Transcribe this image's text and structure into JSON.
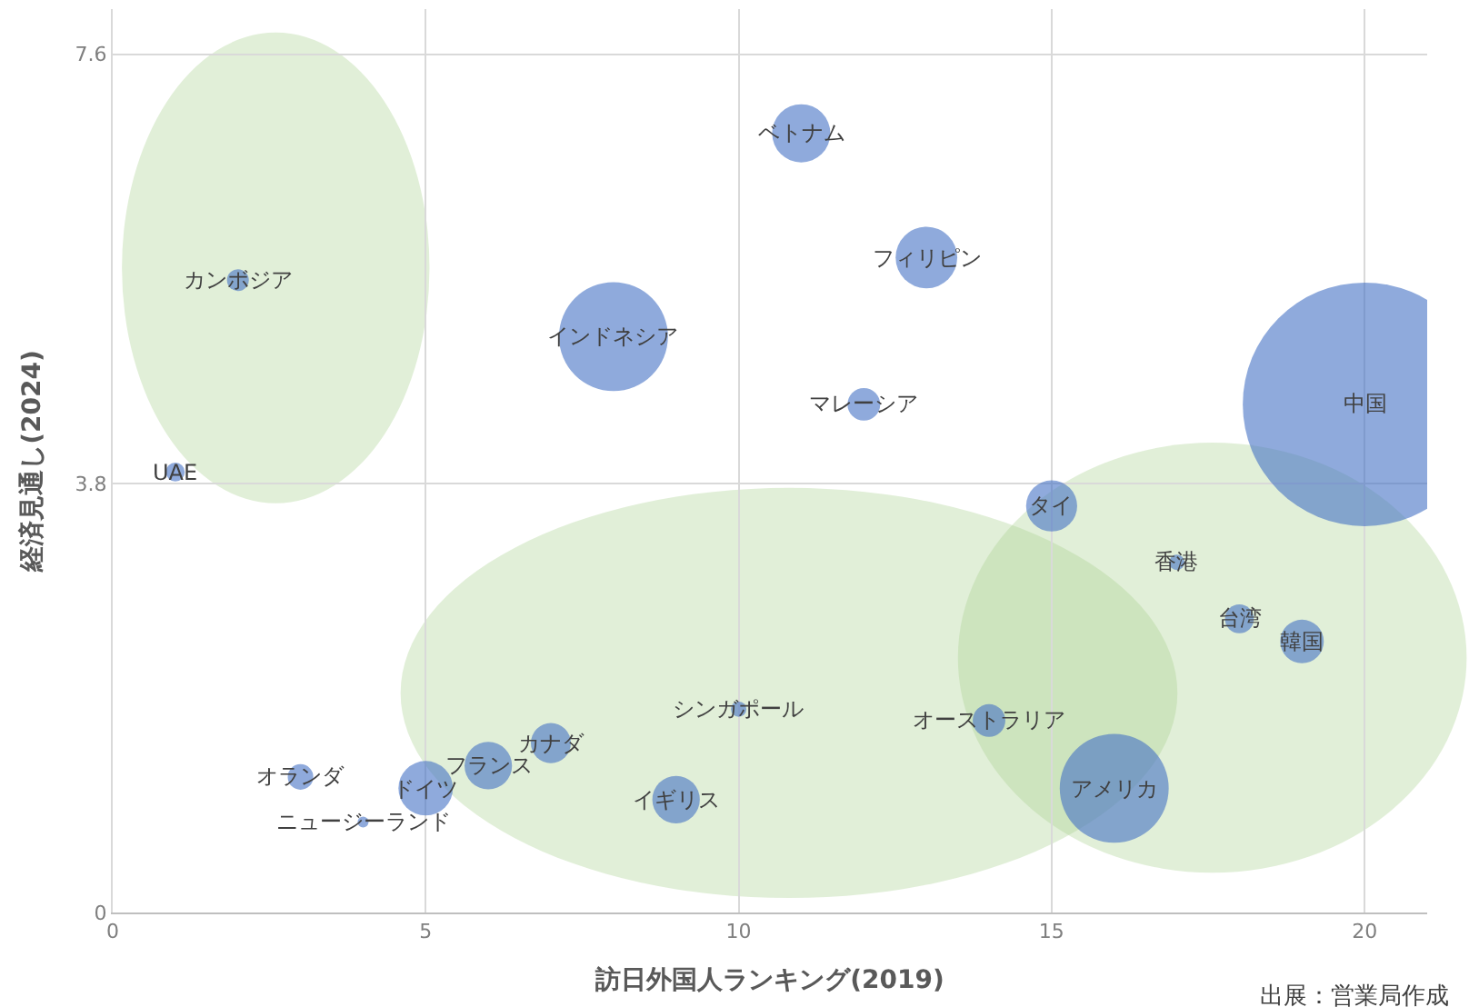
{
  "chart_data": {
    "type": "bubble",
    "xlabel": "訪日外国人ランキング(2019)",
    "ylabel": "経済見通し(2024)",
    "annotations": [
      "出展：営業局作成",
      {
        "text": "UAE",
        "x": 1,
        "y": 3.9
      },
      {
        "text": "カンボジア",
        "x": 2,
        "y": 5.6
      },
      {
        "text": "オランダ",
        "x": 3,
        "y": 1.2
      },
      {
        "text": "ニュージーランド",
        "x": 4,
        "y": 0.8
      },
      {
        "text": "ドイツ",
        "x": 5,
        "y": 1.1
      },
      {
        "text": "フランス",
        "x": 6,
        "y": 1.3
      },
      {
        "text": "カナダ",
        "x": 7,
        "y": 1.5
      },
      {
        "text": "インドネシア",
        "x": 8,
        "y": 5.1
      },
      {
        "text": "イギリス",
        "x": 9,
        "y": 1.0
      },
      {
        "text": "シンガポール",
        "x": 10,
        "y": 1.8
      },
      {
        "text": "ベトナム",
        "x": 11,
        "y": 6.9
      },
      {
        "text": "マレーシア",
        "x": 12,
        "y": 4.5
      },
      {
        "text": "フィリピン",
        "x": 13,
        "y": 5.8
      },
      {
        "text": "オーストラリア",
        "x": 14,
        "y": 1.7
      },
      {
        "text": "タイ",
        "x": 15,
        "y": 3.6
      },
      {
        "text": "アメリカ",
        "x": 16,
        "y": 1.1
      },
      {
        "text": "香港",
        "x": 17,
        "y": 3.1
      },
      {
        "text": "台湾",
        "x": 18,
        "y": 2.6
      },
      {
        "text": "韓国",
        "x": 19,
        "y": 2.4
      },
      {
        "text": "中国",
        "x": 20,
        "y": 4.5
      }
    ],
    "xlim": [
      0,
      21
    ],
    "xticks": [
      0,
      5,
      10,
      15,
      20
    ],
    "ylim": [
      0,
      8
    ],
    "yticks": [
      0,
      3.8,
      7.6
    ],
    "grid": true,
    "series": [
      {
        "color": "#4472c4",
        "x": [
          1,
          2,
          3,
          4,
          5,
          6,
          7,
          8,
          9,
          10,
          11,
          12,
          13,
          14,
          15,
          16,
          17,
          18,
          19,
          20
        ],
        "values": [
          3.9,
          5.6,
          1.2,
          0.8,
          1.1,
          1.3,
          1.5,
          5.1,
          1.0,
          1.8,
          6.9,
          4.5,
          5.8,
          1.7,
          3.6,
          1.1,
          3.1,
          2.6,
          2.4,
          4.5
        ],
        "sizes": [
          0.006,
          0.008,
          0.011,
          0.002,
          0.05,
          0.038,
          0.027,
          0.2,
          0.038,
          0.004,
          0.057,
          0.018,
          0.064,
          0.018,
          0.044,
          0.2,
          0.004,
          0.014,
          0.032,
          1
        ]
      }
    ]
  }
}
